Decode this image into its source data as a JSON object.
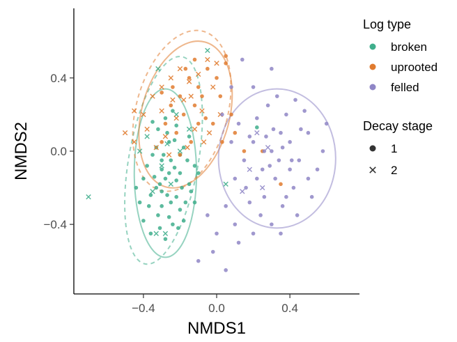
{
  "chart_data": {
    "type": "scatter",
    "xlabel": "NMDS1",
    "ylabel": "NMDS2",
    "xlim": [
      -0.78,
      0.78
    ],
    "ylim": [
      -0.78,
      0.78
    ],
    "x_ticks": [
      -0.4,
      0.0,
      0.4
    ],
    "y_ticks": [
      -0.4,
      0.0,
      0.4
    ],
    "x_tick_labels": [
      "−0.4",
      "0.0",
      "0.4"
    ],
    "y_tick_labels": [
      "−0.4",
      "0.0",
      "0.4"
    ],
    "grid": false,
    "legend_position": "right",
    "legend": {
      "color_title": "Log type",
      "color_entries": [
        {
          "label": "broken",
          "color": "#3fae8c"
        },
        {
          "label": "uprooted",
          "color": "#e07b2f"
        },
        {
          "label": "felled",
          "color": "#8f86c6"
        }
      ],
      "shape_title": "Decay stage",
      "shape_entries": [
        {
          "label": "1",
          "shape": "circle"
        },
        {
          "label": "2",
          "shape": "cross"
        }
      ]
    },
    "series": [
      {
        "name": "broken",
        "color": "#3fae8c",
        "decay1": [
          [
            -0.3,
            -0.1
          ],
          [
            -0.28,
            -0.15
          ],
          [
            -0.25,
            -0.05
          ],
          [
            -0.33,
            -0.2
          ],
          [
            -0.2,
            -0.12
          ],
          [
            -0.35,
            -0.02
          ],
          [
            -0.22,
            -0.25
          ],
          [
            -0.3,
            -0.3
          ],
          [
            -0.18,
            0.02
          ],
          [
            -0.26,
            0.05
          ],
          [
            -0.4,
            -0.15
          ],
          [
            -0.15,
            -0.18
          ],
          [
            -0.32,
            -0.35
          ],
          [
            -0.24,
            -0.4
          ],
          [
            -0.36,
            -0.45
          ],
          [
            -0.28,
            -0.48
          ],
          [
            -0.2,
            -0.32
          ],
          [
            -0.12,
            -0.08
          ],
          [
            -0.38,
            -0.08
          ],
          [
            -0.27,
            0.1
          ],
          [
            -0.22,
            0.14
          ],
          [
            -0.32,
            0.12
          ],
          [
            -0.15,
            0.08
          ],
          [
            -0.1,
            -0.12
          ],
          [
            -0.42,
            -0.28
          ],
          [
            -0.3,
            -0.22
          ],
          [
            -0.25,
            -0.28
          ],
          [
            -0.34,
            -0.14
          ],
          [
            -0.19,
            -0.2
          ],
          [
            -0.29,
            -0.02
          ],
          [
            -0.23,
            -0.09
          ],
          [
            -0.37,
            -0.3
          ],
          [
            -0.31,
            -0.42
          ],
          [
            -0.26,
            -0.36
          ],
          [
            -0.21,
            -0.42
          ],
          [
            -0.17,
            -0.28
          ],
          [
            -0.14,
            -0.22
          ],
          [
            -0.33,
            0.02
          ],
          [
            -0.28,
            0.18
          ],
          [
            -0.24,
            0.22
          ],
          [
            -0.35,
            0.16
          ],
          [
            -0.44,
            -0.2
          ],
          [
            -0.4,
            -0.38
          ],
          [
            -0.2,
            -0.02
          ],
          [
            -0.16,
            -0.05
          ],
          [
            -0.12,
            -0.28
          ],
          [
            -0.27,
            -0.24
          ],
          [
            -0.31,
            -0.18
          ],
          [
            -0.22,
            -0.16
          ],
          [
            -0.36,
            -0.24
          ],
          [
            0.22,
            0.13
          ],
          [
            -0.3,
            -0.05
          ],
          [
            -0.26,
            -0.12
          ],
          [
            -0.18,
            -0.38
          ],
          [
            -0.23,
            0.06
          ]
        ],
        "decay2": [
          [
            -0.7,
            -0.25
          ],
          [
            -0.32,
            0.45
          ],
          [
            -0.3,
            -0.08
          ],
          [
            -0.2,
            0.0
          ],
          [
            -0.35,
            -0.22
          ],
          [
            -0.25,
            -0.18
          ],
          [
            -0.42,
            0.0
          ],
          [
            -0.15,
            0.12
          ],
          [
            -0.05,
            0.55
          ],
          [
            -0.38,
            0.08
          ],
          [
            -0.27,
            0.04
          ],
          [
            -0.33,
            -0.45
          ],
          [
            -0.28,
            -0.45
          ],
          [
            0.05,
            -0.18
          ],
          [
            -0.22,
            0.2
          ]
        ]
      },
      {
        "name": "uprooted",
        "color": "#e07b2f",
        "decay1": [
          [
            -0.2,
            0.3
          ],
          [
            -0.15,
            0.4
          ],
          [
            -0.1,
            0.35
          ],
          [
            -0.05,
            0.45
          ],
          [
            0.0,
            0.4
          ],
          [
            -0.25,
            0.25
          ],
          [
            -0.18,
            0.2
          ],
          [
            -0.22,
            0.1
          ],
          [
            -0.12,
            0.25
          ],
          [
            -0.08,
            0.3
          ],
          [
            0.05,
            0.48
          ],
          [
            -0.02,
            0.15
          ],
          [
            0.03,
            0.05
          ],
          [
            -0.28,
            0.15
          ],
          [
            -0.3,
            0.05
          ],
          [
            -0.14,
            0.05
          ],
          [
            -0.1,
            0.15
          ],
          [
            -0.24,
            0.35
          ],
          [
            -0.17,
            0.45
          ],
          [
            0.02,
            0.3
          ],
          [
            0.08,
            0.2
          ],
          [
            0.1,
            0.1
          ],
          [
            -0.06,
            0.18
          ],
          [
            -0.2,
            -0.02
          ],
          [
            -0.3,
            0.32
          ],
          [
            0.15,
            0.0
          ],
          [
            0.25,
            0.0
          ],
          [
            0.35,
            -0.18
          ],
          [
            -0.12,
            0.5
          ],
          [
            0.05,
            0.52
          ]
        ],
        "decay2": [
          [
            -0.5,
            0.1
          ],
          [
            -0.45,
            0.22
          ],
          [
            -0.4,
            0.2
          ],
          [
            -0.35,
            0.3
          ],
          [
            -0.3,
            0.35
          ],
          [
            -0.25,
            0.4
          ],
          [
            -0.2,
            0.45
          ],
          [
            -0.15,
            0.38
          ],
          [
            -0.1,
            0.42
          ],
          [
            -0.05,
            0.5
          ],
          [
            0.0,
            0.48
          ],
          [
            -0.18,
            0.28
          ],
          [
            -0.22,
            0.18
          ],
          [
            -0.08,
            0.22
          ],
          [
            -0.12,
            0.12
          ],
          [
            -0.28,
            0.08
          ],
          [
            -0.33,
            0.02
          ],
          [
            -0.38,
            0.12
          ],
          [
            -0.26,
            -0.02
          ],
          [
            -0.16,
            0.02
          ],
          [
            -0.04,
            0.1
          ],
          [
            0.02,
            0.2
          ],
          [
            -0.02,
            0.35
          ],
          [
            -0.14,
            0.3
          ],
          [
            -0.24,
            0.28
          ],
          [
            -0.07,
            0.05
          ],
          [
            -0.45,
            0.05
          ],
          [
            -0.3,
            0.22
          ]
        ]
      },
      {
        "name": "felled",
        "color": "#8f86c6",
        "decay1": [
          [
            0.3,
            0.0
          ],
          [
            0.35,
            0.1
          ],
          [
            0.25,
            -0.1
          ],
          [
            0.4,
            0.05
          ],
          [
            0.45,
            -0.05
          ],
          [
            0.2,
            0.05
          ],
          [
            0.32,
            -0.15
          ],
          [
            0.38,
            0.2
          ],
          [
            0.28,
            0.25
          ],
          [
            0.5,
            0.1
          ],
          [
            0.55,
            -0.1
          ],
          [
            0.42,
            -0.2
          ],
          [
            0.15,
            -0.05
          ],
          [
            0.22,
            0.18
          ],
          [
            0.48,
            0.22
          ],
          [
            0.36,
            -0.3
          ],
          [
            0.26,
            -0.25
          ],
          [
            0.1,
            -0.15
          ],
          [
            0.05,
            -0.3
          ],
          [
            0.0,
            -0.45
          ],
          [
            -0.05,
            -0.35
          ],
          [
            0.1,
            -0.4
          ],
          [
            0.18,
            -0.28
          ],
          [
            0.3,
            -0.4
          ],
          [
            0.44,
            -0.35
          ],
          [
            0.52,
            -0.25
          ],
          [
            0.58,
            0.0
          ],
          [
            0.6,
            0.15
          ],
          [
            0.33,
            0.3
          ],
          [
            0.2,
            0.35
          ],
          [
            0.3,
            0.45
          ],
          [
            0.12,
            0.15
          ],
          [
            0.08,
            0.05
          ],
          [
            0.4,
            -0.1
          ],
          [
            0.46,
            0.12
          ],
          [
            0.27,
            0.08
          ],
          [
            0.34,
            -0.05
          ],
          [
            0.22,
            -0.15
          ],
          [
            0.16,
            -0.2
          ],
          [
            0.38,
            -0.25
          ],
          [
            -0.1,
            -0.6
          ],
          [
            0.05,
            -0.65
          ],
          [
            -0.02,
            -0.55
          ],
          [
            0.12,
            -0.5
          ],
          [
            0.24,
            -0.35
          ],
          [
            0.03,
            0.2
          ],
          [
            0.08,
            0.35
          ],
          [
            0.14,
            0.5
          ],
          [
            0.31,
            0.12
          ],
          [
            0.43,
            0.28
          ],
          [
            0.35,
            -0.45
          ],
          [
            0.2,
            -0.45
          ],
          [
            0.5,
            -0.15
          ],
          [
            0.41,
            -0.05
          ],
          [
            0.26,
            0.0
          ],
          [
            0.18,
            0.08
          ],
          [
            0.29,
            -0.08
          ],
          [
            0.36,
            0.02
          ]
        ],
        "decay2": [
          [
            0.18,
            -0.1
          ],
          [
            0.25,
            -0.2
          ],
          [
            0.28,
            0.02
          ],
          [
            0.22,
            0.1
          ],
          [
            0.14,
            -0.22
          ]
        ]
      }
    ],
    "ellipses": [
      {
        "group": "broken",
        "decay_stage": "1",
        "style": "solid",
        "center": [
          -0.28,
          -0.12
        ],
        "axis_lengths": [
          0.34,
          0.92
        ],
        "angle_deg": 0
      },
      {
        "group": "broken",
        "decay_stage": "2",
        "style": "dashed",
        "center": [
          -0.29,
          -0.05
        ],
        "axis_lengths": [
          0.38,
          1.15
        ],
        "angle_deg": 10
      },
      {
        "group": "uprooted",
        "decay_stage": "1",
        "style": "solid",
        "center": [
          -0.17,
          0.2
        ],
        "axis_lengths": [
          0.48,
          0.82
        ],
        "angle_deg": 15
      },
      {
        "group": "uprooted",
        "decay_stage": "2",
        "style": "dashed",
        "center": [
          -0.19,
          0.22
        ],
        "axis_lengths": [
          0.5,
          0.9
        ],
        "angle_deg": 15
      },
      {
        "group": "felled",
        "decay_stage": "1",
        "style": "solid",
        "center": [
          0.33,
          -0.04
        ],
        "axis_lengths": [
          0.64,
          0.76
        ],
        "angle_deg": 0
      }
    ]
  }
}
